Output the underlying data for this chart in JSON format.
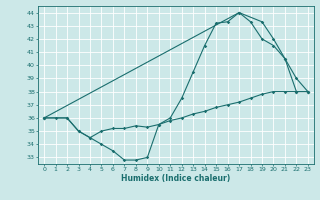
{
  "xlabel": "Humidex (Indice chaleur)",
  "bg_color": "#cce8e8",
  "grid_color": "#ffffff",
  "line_color": "#1a6e6e",
  "xlim": [
    -0.5,
    23.5
  ],
  "ylim": [
    32.5,
    44.5
  ],
  "xticks": [
    0,
    1,
    2,
    3,
    4,
    5,
    6,
    7,
    8,
    9,
    10,
    11,
    12,
    13,
    14,
    15,
    16,
    17,
    18,
    19,
    20,
    21,
    22,
    23
  ],
  "yticks": [
    33,
    34,
    35,
    36,
    37,
    38,
    39,
    40,
    41,
    42,
    43,
    44
  ],
  "line1_x": [
    0,
    1,
    2,
    3,
    4,
    5,
    6,
    7,
    8,
    9,
    10,
    11,
    12,
    13,
    14,
    15,
    16,
    17,
    18,
    19,
    20,
    21,
    22,
    23
  ],
  "line1_y": [
    36.0,
    36.0,
    36.0,
    35.0,
    34.5,
    34.0,
    33.5,
    32.8,
    32.8,
    33.0,
    35.5,
    36.0,
    37.5,
    39.5,
    41.5,
    43.2,
    43.3,
    44.0,
    43.3,
    42.0,
    41.5,
    40.5,
    38.0,
    38.0
  ],
  "line2_x": [
    0,
    2,
    3,
    4,
    5,
    6,
    7,
    8,
    9,
    10,
    11,
    12,
    13,
    14,
    15,
    16,
    17,
    18,
    19,
    20,
    21,
    22,
    23
  ],
  "line2_y": [
    36.0,
    36.0,
    35.0,
    34.5,
    35.0,
    35.2,
    35.2,
    35.4,
    35.3,
    35.5,
    35.8,
    36.0,
    36.3,
    36.5,
    36.8,
    37.0,
    37.2,
    37.5,
    37.8,
    38.0,
    38.0,
    38.0,
    38.0
  ],
  "line3_x": [
    0,
    17,
    19,
    20,
    21,
    22,
    23
  ],
  "line3_y": [
    36.0,
    44.0,
    43.3,
    42.0,
    40.5,
    39.0,
    38.0
  ],
  "marker_size": 1.8,
  "line_width": 0.8,
  "tick_fontsize": 4.5,
  "xlabel_fontsize": 5.5
}
